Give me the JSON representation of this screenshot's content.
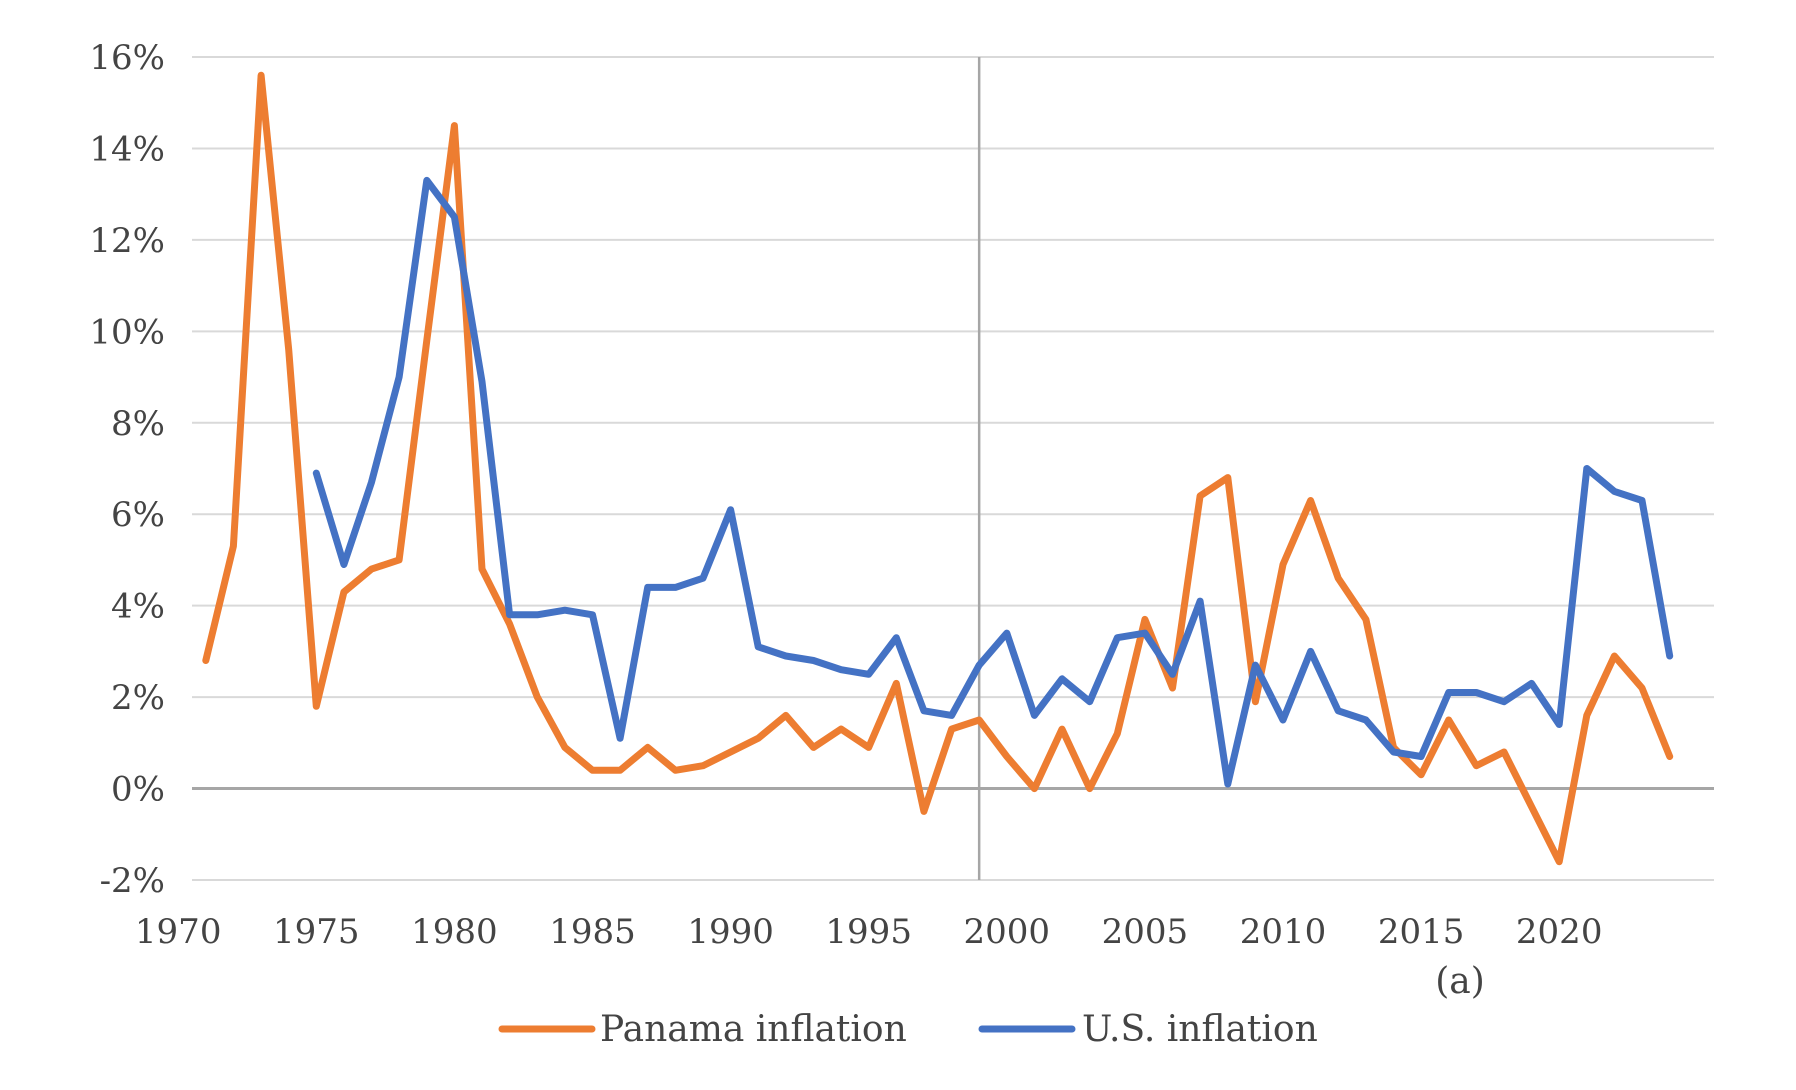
{
  "chart_data": {
    "type": "line",
    "title": "",
    "xlabel": "",
    "ylabel": "",
    "xlim": [
      1970,
      2024
    ],
    "ylim": [
      -2,
      16
    ],
    "x_ticks": [
      1970,
      1975,
      1980,
      1985,
      1990,
      1995,
      2000,
      2005,
      2010,
      2015,
      2020
    ],
    "x_tick_labels": [
      "1970",
      "1975",
      "1980",
      "1985",
      "1990",
      "1995",
      "2000",
      "2005",
      "2010",
      "2015",
      "2020"
    ],
    "y_ticks": [
      -2,
      0,
      2,
      4,
      6,
      8,
      10,
      12,
      14,
      16
    ],
    "y_tick_labels": [
      "-2%",
      "0%",
      "2%",
      "4%",
      "6%",
      "8%",
      "10%",
      "12%",
      "14%",
      "16%"
    ],
    "grid": true,
    "reference_line_x": 1999,
    "annotation": "(a)",
    "legend_position": "bottom",
    "series": [
      {
        "name": "Panama inflation",
        "color": "#ED7D31",
        "x": [
          1971,
          1972,
          1973,
          1974,
          1975,
          1976,
          1977,
          1978,
          1979,
          1980,
          1981,
          1982,
          1983,
          1984,
          1985,
          1986,
          1987,
          1988,
          1989,
          1990,
          1991,
          1992,
          1993,
          1994,
          1995,
          1996,
          1997,
          1998,
          1999,
          2000,
          2001,
          2002,
          2003,
          2004,
          2005,
          2006,
          2007,
          2008,
          2009,
          2010,
          2011,
          2012,
          2013,
          2014,
          2015,
          2016,
          2017,
          2018,
          2019,
          2020,
          2021,
          2022,
          2023,
          2024
        ],
        "values": [
          2.8,
          5.3,
          15.6,
          9.6,
          1.8,
          4.3,
          4.8,
          5.0,
          9.8,
          14.5,
          4.8,
          3.6,
          2.0,
          0.9,
          0.4,
          0.4,
          0.9,
          0.4,
          0.5,
          0.8,
          1.1,
          1.6,
          0.9,
          1.3,
          0.9,
          2.3,
          -0.5,
          1.3,
          1.5,
          0.7,
          0.0,
          1.3,
          0.0,
          1.2,
          3.7,
          2.2,
          6.4,
          6.8,
          1.9,
          4.9,
          6.3,
          4.6,
          3.7,
          0.9,
          0.3,
          1.5,
          0.5,
          0.8,
          -0.4,
          -1.6,
          1.6,
          2.9,
          2.2,
          0.7
        ]
      },
      {
        "name": "U.S. inflation",
        "color": "#4472C4",
        "x": [
          1975,
          1976,
          1977,
          1978,
          1979,
          1980,
          1981,
          1982,
          1983,
          1984,
          1985,
          1986,
          1987,
          1988,
          1989,
          1990,
          1991,
          1992,
          1993,
          1994,
          1995,
          1996,
          1997,
          1998,
          1999,
          2000,
          2001,
          2002,
          2003,
          2004,
          2005,
          2006,
          2007,
          2008,
          2009,
          2010,
          2011,
          2012,
          2013,
          2014,
          2015,
          2016,
          2017,
          2018,
          2019,
          2020,
          2021,
          2022,
          2023,
          2024
        ],
        "values": [
          6.9,
          4.9,
          6.7,
          9.0,
          13.3,
          12.5,
          8.9,
          3.8,
          3.8,
          3.9,
          3.8,
          1.1,
          4.4,
          4.4,
          4.6,
          6.1,
          3.1,
          2.9,
          2.8,
          2.6,
          2.5,
          3.3,
          1.7,
          1.6,
          2.7,
          3.4,
          1.6,
          2.4,
          1.9,
          3.3,
          3.4,
          2.5,
          4.1,
          0.1,
          2.7,
          1.5,
          3.0,
          1.7,
          1.5,
          0.8,
          0.7,
          2.1,
          2.1,
          1.9,
          2.3,
          1.4,
          7.0,
          6.5,
          6.3,
          2.9
        ]
      }
    ]
  }
}
